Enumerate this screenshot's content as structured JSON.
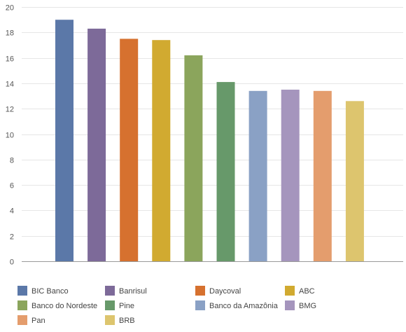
{
  "chart_data": {
    "type": "bar",
    "title": "",
    "xlabel": "",
    "ylabel": "",
    "ylim": [
      0,
      20
    ],
    "yticks": [
      0,
      2,
      4,
      6,
      8,
      10,
      12,
      14,
      16,
      18,
      20
    ],
    "grid": true,
    "legend_position": "bottom",
    "categories": [
      "BIC Banco",
      "Banrisul",
      "Daycoval",
      "ABC",
      "Banco do Nordeste",
      "Pine",
      "Banco da Amazônia",
      "BMG",
      "Pan",
      "BRB"
    ],
    "values": [
      19.0,
      18.3,
      17.5,
      17.4,
      16.2,
      14.1,
      13.4,
      13.5,
      13.4,
      12.6
    ],
    "colors": [
      "#5b78a8",
      "#7d6a99",
      "#d6712f",
      "#d1aa30",
      "#8ba55c",
      "#67996a",
      "#8aa1c5",
      "#a595bd",
      "#e49d6d",
      "#ddc56e"
    ]
  }
}
